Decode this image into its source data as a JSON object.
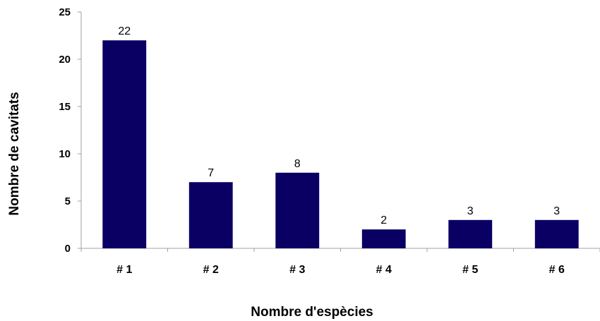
{
  "chart_data": {
    "type": "bar",
    "title": "",
    "xlabel": "Nombre d'espècies",
    "ylabel": "Nombre de cavitats",
    "categories": [
      "# 1",
      "# 2",
      "# 3",
      "# 4",
      "# 5",
      "# 6"
    ],
    "values": [
      22,
      7,
      8,
      2,
      3,
      3
    ],
    "data_labels": [
      "22",
      "7",
      "8",
      "2",
      "3",
      "3"
    ],
    "ylim": [
      0,
      25
    ],
    "yticks": [
      0,
      5,
      10,
      15,
      20,
      25
    ],
    "ytick_labels": [
      "0",
      "5",
      "10",
      "15",
      "20",
      "25"
    ],
    "grid": false,
    "legend": "none",
    "bar_color": "#0a0064"
  }
}
